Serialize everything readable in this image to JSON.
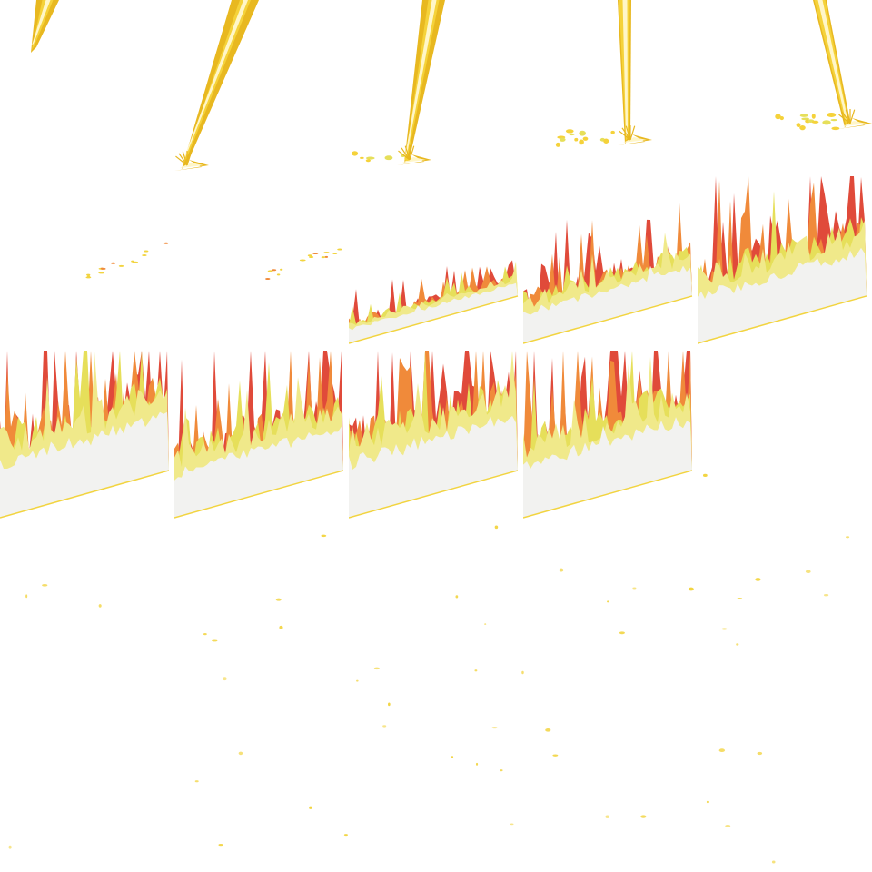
{
  "sheet": {
    "background": "#ffffff",
    "columns": 5,
    "rows": 5
  },
  "palette": {
    "beam_outer": "#e8b820",
    "beam_mid": "#f5d23a",
    "beam_core": "#fff6c8",
    "flame_red": "#e04a3a",
    "flame_orange": "#f08a3a",
    "flame_yellow": "#e6df5a",
    "flame_pale": "#f0e98a",
    "flame_white": "#f2f2f0",
    "ember": "#f2d440"
  },
  "frames": [
    {
      "kind": "beam",
      "index": 1
    },
    {
      "kind": "beam",
      "index": 2
    },
    {
      "kind": "beam",
      "index": 3
    },
    {
      "kind": "beam",
      "index": 4
    },
    {
      "kind": "beam",
      "index": 5
    },
    {
      "kind": "fire",
      "index": 6,
      "intensity": 0.04
    },
    {
      "kind": "fire",
      "index": 7,
      "intensity": 0.02
    },
    {
      "kind": "fire",
      "index": 8,
      "intensity": 0.25
    },
    {
      "kind": "fire",
      "index": 9,
      "intensity": 0.55
    },
    {
      "kind": "fire",
      "index": 10,
      "intensity": 0.85
    },
    {
      "kind": "fire",
      "index": 11,
      "intensity": 1.0
    },
    {
      "kind": "fire",
      "index": 12,
      "intensity": 0.8
    },
    {
      "kind": "fire",
      "index": 13,
      "intensity": 1.0
    },
    {
      "kind": "fire",
      "index": 14,
      "intensity": 0.95
    },
    {
      "kind": "embers",
      "index": 15,
      "intensity": 0.1
    }
  ]
}
